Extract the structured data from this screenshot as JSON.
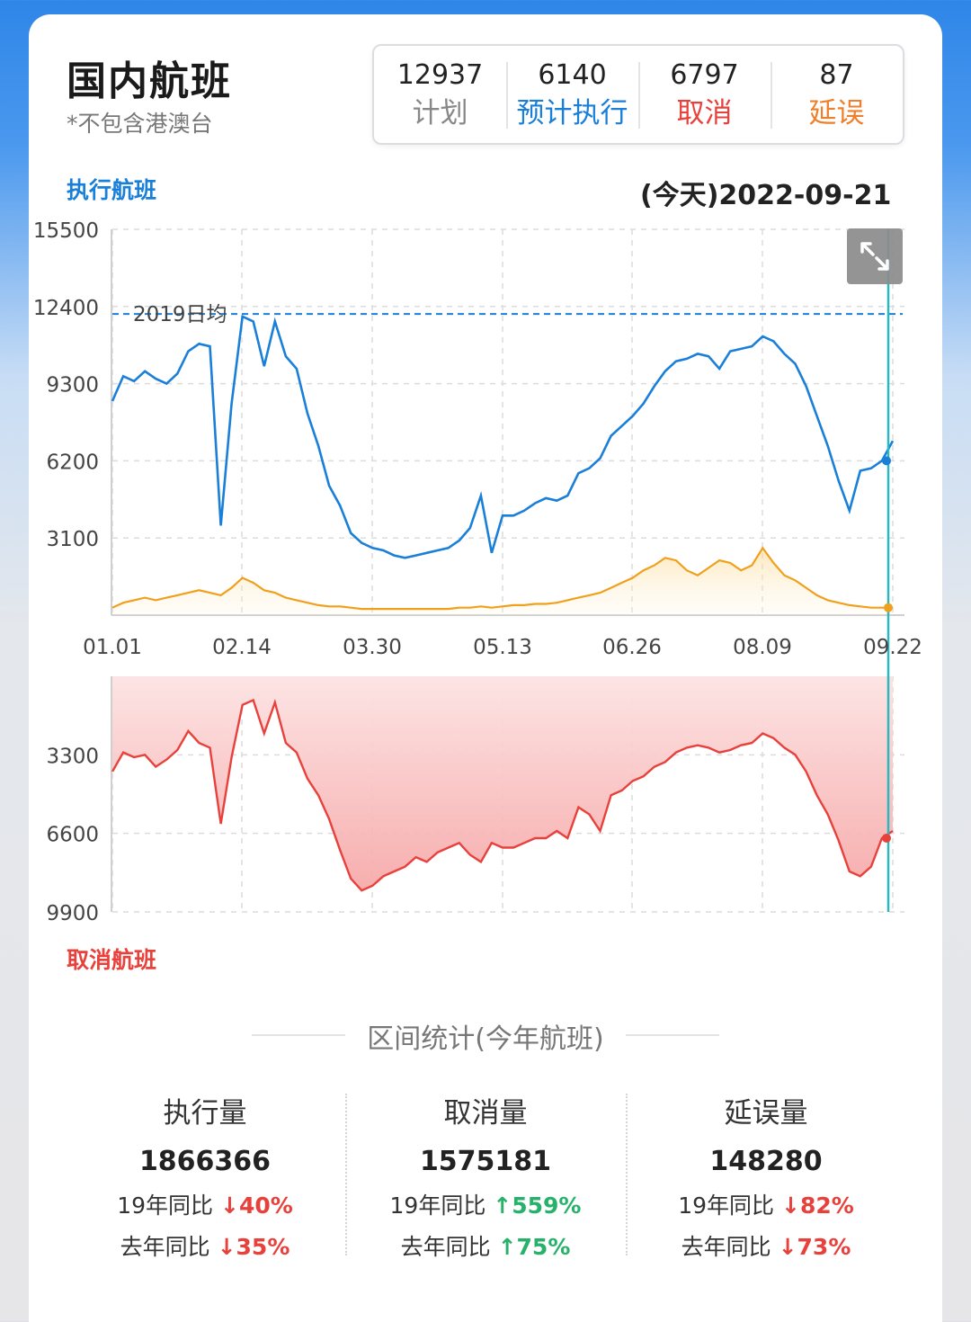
{
  "header": {
    "title": "国内航班",
    "subtitle": "*不包含港澳台"
  },
  "stats": [
    {
      "value": "12937",
      "label": "计划"
    },
    {
      "value": "6140",
      "label": "预计执行"
    },
    {
      "value": "6797",
      "label": "取消"
    },
    {
      "value": "87",
      "label": "延误"
    }
  ],
  "chart_labels": {
    "executed": "执行航班",
    "cancelled": "取消航班",
    "date": "(今天)2022-09-21",
    "reference_line": "2019日均"
  },
  "colors": {
    "executed": "#1a7fd8",
    "delayed": "#f0a01c",
    "cancelled": "#e8413c",
    "marker": "#2ab7c0"
  },
  "chart_data": [
    {
      "type": "line",
      "x_tick_labels": [
        "01.01",
        "02.14",
        "03.30",
        "05.13",
        "06.26",
        "08.09",
        "09.22"
      ],
      "y_tick_labels": [
        "15500",
        "12400",
        "9300",
        "6200",
        "3100"
      ],
      "ylim": [
        0,
        15500
      ],
      "grid": true,
      "reference_value": 12100,
      "series": [
        {
          "name": "执行航班",
          "values": [
            8600,
            9600,
            9400,
            9800,
            9500,
            9300,
            9700,
            10600,
            10900,
            10800,
            3600,
            8500,
            12000,
            11800,
            10000,
            11800,
            10400,
            9900,
            8100,
            6800,
            5200,
            4400,
            3300,
            2900,
            2700,
            2600,
            2400,
            2300,
            2400,
            2500,
            2600,
            2700,
            3000,
            3500,
            4800,
            2500,
            4000,
            4000,
            4200,
            4500,
            4700,
            4600,
            4800,
            5700,
            5900,
            6300,
            7200,
            7600,
            8000,
            8500,
            9200,
            9800,
            10200,
            10300,
            10500,
            10400,
            9900,
            10600,
            10700,
            10800,
            11200,
            11000,
            10500,
            10100,
            9200,
            8000,
            6800,
            5400,
            4200,
            5800,
            5900,
            6200,
            7000
          ]
        },
        {
          "name": "延误",
          "values": [
            300,
            500,
            600,
            700,
            600,
            700,
            800,
            900,
            1000,
            900,
            800,
            1100,
            1500,
            1300,
            1000,
            900,
            700,
            600,
            500,
            400,
            350,
            350,
            300,
            250,
            250,
            250,
            250,
            250,
            250,
            250,
            250,
            250,
            300,
            300,
            350,
            300,
            350,
            400,
            400,
            450,
            450,
            500,
            600,
            700,
            800,
            900,
            1100,
            1300,
            1500,
            1800,
            2000,
            2300,
            2200,
            1800,
            1600,
            1900,
            2200,
            2100,
            1800,
            2000,
            2700,
            2100,
            1600,
            1400,
            1100,
            800,
            600,
            500,
            400,
            350,
            300,
            300,
            300
          ]
        }
      ]
    },
    {
      "type": "area",
      "y_tick_labels": [
        "3300",
        "6600",
        "9900"
      ],
      "y_inverted": true,
      "ylim": [
        0,
        9900
      ],
      "grid": true,
      "series": [
        {
          "name": "取消航班",
          "values": [
            4000,
            3200,
            3400,
            3300,
            3800,
            3500,
            3100,
            2300,
            2800,
            3000,
            6200,
            3400,
            1200,
            1000,
            2400,
            1100,
            2800,
            3200,
            4300,
            5000,
            6000,
            7300,
            8500,
            9000,
            8800,
            8400,
            8200,
            8000,
            7600,
            7800,
            7400,
            7200,
            7000,
            7500,
            7800,
            7000,
            7200,
            7200,
            7000,
            6800,
            6800,
            6500,
            6800,
            5500,
            5800,
            6500,
            5000,
            4800,
            4400,
            4200,
            3800,
            3600,
            3200,
            3000,
            2900,
            3000,
            3200,
            3100,
            2900,
            2800,
            2400,
            2600,
            3000,
            3300,
            4000,
            5000,
            5800,
            6900,
            8200,
            8400,
            8000,
            6800,
            6500
          ]
        }
      ]
    }
  ],
  "summary": {
    "title": "区间统计(今年航班)",
    "columns": [
      {
        "title": "执行量",
        "value": "1866366",
        "row1_label": "19年同比",
        "row1_arrow": "↓",
        "row1_value": "40%",
        "row2_label": "去年同比",
        "row2_arrow": "↓",
        "row2_value": "35%"
      },
      {
        "title": "取消量",
        "value": "1575181",
        "row1_label": "19年同比",
        "row1_arrow": "↑",
        "row1_value": "559%",
        "row2_label": "去年同比",
        "row2_arrow": "↑",
        "row2_value": "75%"
      },
      {
        "title": "延误量",
        "value": "148280",
        "row1_label": "19年同比",
        "row1_arrow": "↓",
        "row1_value": "82%",
        "row2_label": "去年同比",
        "row2_arrow": "↓",
        "row2_value": "73%"
      }
    ]
  }
}
